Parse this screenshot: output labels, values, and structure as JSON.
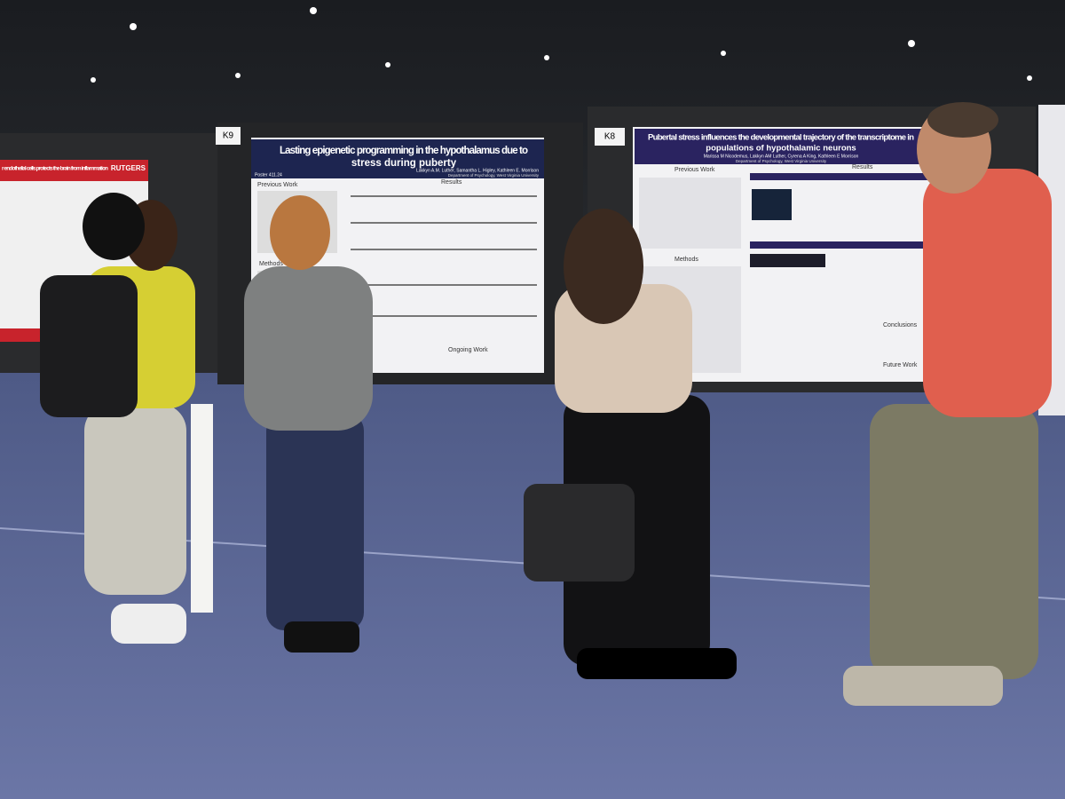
{
  "left_poster": {
    "logo": "RUTGERS",
    "title": "r endothelial cells protects the brain from inflammation"
  },
  "posters": [
    {
      "board": "K9",
      "number": "Poster 411.24",
      "title_lines": [
        "Lasting epigenetic programming in the hypothalamus due to",
        "stress during puberty"
      ],
      "authors": "Lakkyn A.M. Luther, Samantha L. Higley, Kathleen E. Morrison",
      "affiliation": "Department of Psychology, West Virginia University",
      "sections": [
        "Previous Work",
        "Results",
        "Methods",
        "Ongoing Work"
      ]
    },
    {
      "board": "K8",
      "title_lines": [
        "Pubertal stress influences the developmental trajectory of the transcriptome in",
        "populations of hypothalamic neurons"
      ],
      "authors": "Marissa M Nicodemus, Lakkyn AM Luther, Cyrena A King, Kathleen E Morrison",
      "affiliation": "Department of Psychology, West Virginia University",
      "sections": [
        "Previous Work",
        "Results",
        "Methods",
        "Conclusions",
        "Future Work"
      ]
    }
  ]
}
